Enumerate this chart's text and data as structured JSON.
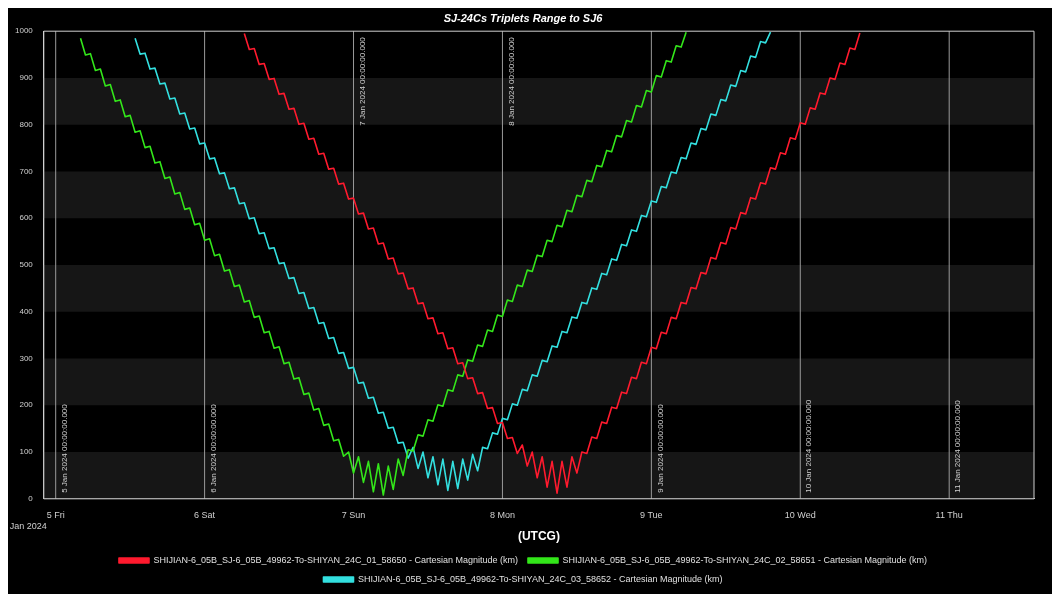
{
  "chart_data": {
    "type": "line",
    "title": "SJ-24Cs Triplets Range to SJ6",
    "xlabel": "(UTCG)",
    "legend": "bottom",
    "xlim": [
      "2024-01-04T22:05",
      "2024-01-11T13:40"
    ],
    "xticks": [
      {
        "value": "2024-01-05",
        "label": "5 Fri"
      },
      {
        "value": "2024-01-06",
        "label": "6 Sat"
      },
      {
        "value": "2024-01-07",
        "label": "7 Sun"
      },
      {
        "value": "2024-01-08",
        "label": "8 Mon"
      },
      {
        "value": "2024-01-09",
        "label": "9 Tue"
      },
      {
        "value": "2024-01-10",
        "label": "10 Wed"
      },
      {
        "value": "2024-01-11",
        "label": "11 Thu"
      }
    ],
    "ylim": [
      0,
      1000
    ],
    "yticks": [
      0,
      100,
      200,
      300,
      400,
      500,
      600,
      700,
      800,
      900,
      1000
    ],
    "annotations": [
      "Jan 2024"
    ],
    "bands": [
      {
        "axis": "y",
        "from": 0,
        "to": 100,
        "color": "#161616"
      },
      {
        "axis": "y",
        "from": 200,
        "to": 300,
        "color": "#161616"
      },
      {
        "axis": "y",
        "from": 400,
        "to": 500,
        "color": "#161616"
      },
      {
        "axis": "y",
        "from": 600,
        "to": 700,
        "color": "#161616"
      },
      {
        "axis": "y",
        "from": 800,
        "to": 900,
        "color": "#161616"
      }
    ],
    "ref_lines": [
      {
        "axis": "x",
        "value": "2024-01-05",
        "label": "5 Jan 2024 00:00:00.000"
      },
      {
        "axis": "x",
        "value": "2024-01-06",
        "label": "6 Jan 2024 00:00:00.000"
      },
      {
        "axis": "x",
        "value": "2024-01-07",
        "label": "7 Jan 2024 00:00:00.000"
      },
      {
        "axis": "x",
        "value": "2024-01-08",
        "label": "8 Jan 2024 00:00:00.000"
      },
      {
        "axis": "x",
        "value": "2024-01-09",
        "label": "9 Jan 2024 00:00:00.000"
      },
      {
        "axis": "x",
        "value": "2024-01-10",
        "label": "10 Jan 2024 00:00:00.000"
      },
      {
        "axis": "x",
        "value": "2024-01-11",
        "label": "11 Jan 2024 00:00:00.000"
      }
    ],
    "series": [
      {
        "name": "SHIJIAN-6_05B_SJ-6_05B_49962-To-SHIYAN_24C_01_58650 - Cartesian Magnitude (km)",
        "color": "#ff1a2e",
        "x": [
          "2024-01-06T06:24",
          "2024-01-06T07:12",
          "2024-01-06T08:00",
          "2024-01-06T08:48",
          "2024-01-06T09:36",
          "2024-01-06T10:24",
          "2024-01-06T11:12",
          "2024-01-06T12:00",
          "2024-01-06T12:48",
          "2024-01-06T13:36",
          "2024-01-06T14:24",
          "2024-01-06T15:12",
          "2024-01-06T16:00",
          "2024-01-06T16:48",
          "2024-01-06T17:36",
          "2024-01-06T18:24",
          "2024-01-06T19:12",
          "2024-01-06T20:00",
          "2024-01-06T20:48",
          "2024-01-06T21:36",
          "2024-01-06T22:24",
          "2024-01-06T23:12",
          "2024-01-07T00:00",
          "2024-01-07T00:48",
          "2024-01-07T01:36",
          "2024-01-07T02:24",
          "2024-01-07T03:12",
          "2024-01-07T04:00",
          "2024-01-07T04:48",
          "2024-01-07T05:36",
          "2024-01-07T06:24",
          "2024-01-07T07:12",
          "2024-01-07T08:00",
          "2024-01-07T08:48",
          "2024-01-07T09:36",
          "2024-01-07T10:24",
          "2024-01-07T11:12",
          "2024-01-07T12:00",
          "2024-01-07T12:48",
          "2024-01-07T13:36",
          "2024-01-07T14:24",
          "2024-01-07T15:12",
          "2024-01-07T16:00",
          "2024-01-07T16:48",
          "2024-01-07T17:36",
          "2024-01-07T18:24",
          "2024-01-07T19:12",
          "2024-01-07T20:00",
          "2024-01-07T20:48",
          "2024-01-07T21:36",
          "2024-01-07T22:24",
          "2024-01-07T23:12",
          "2024-01-08T00:00",
          "2024-01-08T00:48",
          "2024-01-08T01:36",
          "2024-01-08T02:24",
          "2024-01-08T03:12",
          "2024-01-08T04:00",
          "2024-01-08T04:48",
          "2024-01-08T05:36",
          "2024-01-08T06:24",
          "2024-01-08T07:12",
          "2024-01-08T08:00",
          "2024-01-08T08:48",
          "2024-01-08T09:36",
          "2024-01-08T10:24",
          "2024-01-08T11:12",
          "2024-01-08T12:00",
          "2024-01-08T12:48",
          "2024-01-08T13:36",
          "2024-01-08T14:24",
          "2024-01-08T15:12",
          "2024-01-08T16:00",
          "2024-01-08T16:48",
          "2024-01-08T17:36",
          "2024-01-08T18:24",
          "2024-01-08T19:12",
          "2024-01-08T20:00",
          "2024-01-08T20:48",
          "2024-01-08T21:36",
          "2024-01-08T22:24",
          "2024-01-08T23:12",
          "2024-01-09T00:00",
          "2024-01-09T00:48",
          "2024-01-09T01:36",
          "2024-01-09T02:24",
          "2024-01-09T03:12",
          "2024-01-09T04:00",
          "2024-01-09T04:48",
          "2024-01-09T05:36",
          "2024-01-09T06:24",
          "2024-01-09T07:12",
          "2024-01-09T08:00",
          "2024-01-09T08:48",
          "2024-01-09T09:36",
          "2024-01-09T10:24",
          "2024-01-09T11:12",
          "2024-01-09T12:00",
          "2024-01-09T12:48",
          "2024-01-09T13:36",
          "2024-01-09T14:24",
          "2024-01-09T15:12",
          "2024-01-09T16:00",
          "2024-01-09T16:48",
          "2024-01-09T17:36",
          "2024-01-09T18:24",
          "2024-01-09T19:12",
          "2024-01-09T20:00",
          "2024-01-09T20:48",
          "2024-01-09T21:36",
          "2024-01-09T22:24",
          "2024-01-09T23:12",
          "2024-01-10T00:00",
          "2024-01-10T00:48",
          "2024-01-10T01:36",
          "2024-01-10T02:24",
          "2024-01-10T03:12",
          "2024-01-10T04:00",
          "2024-01-10T04:48",
          "2024-01-10T05:36",
          "2024-01-10T06:24",
          "2024-01-10T07:12",
          "2024-01-10T08:00",
          "2024-01-10T08:48",
          "2024-01-10T09:36"
        ],
        "values": [
          995,
          961,
          963,
          929,
          931,
          897,
          899,
          865,
          867,
          833,
          835,
          801,
          803,
          769,
          771,
          737,
          739,
          705,
          707,
          673,
          675,
          641,
          643,
          609,
          611,
          577,
          579,
          545,
          547,
          513,
          515,
          481,
          483,
          449,
          451,
          417,
          419,
          385,
          387,
          353,
          355,
          321,
          323,
          289,
          291,
          257,
          259,
          225,
          227,
          193,
          195,
          161,
          163,
          129,
          131,
          97,
          115,
          70,
          100,
          45,
          90,
          25,
          80,
          12,
          80,
          25,
          90,
          55,
          100,
          97,
          132,
          129,
          164,
          161,
          196,
          193,
          228,
          225,
          260,
          257,
          292,
          289,
          324,
          321,
          356,
          353,
          388,
          385,
          420,
          417,
          452,
          449,
          484,
          481,
          516,
          513,
          548,
          545,
          580,
          577,
          612,
          609,
          644,
          641,
          676,
          673,
          708,
          705,
          740,
          737,
          772,
          769,
          804,
          801,
          836,
          833,
          868,
          865,
          900,
          897,
          932,
          929,
          964,
          961,
          996
        ]
      },
      {
        "name": "SHIJIAN-6_05B_SJ-6_05B_49962-To-SHIYAN_24C_02_58651 - Cartesian Magnitude (km)",
        "color": "#33e61a",
        "x": [
          "2024-01-05T04:00",
          "2024-01-05T04:48",
          "2024-01-05T05:36",
          "2024-01-05T06:24",
          "2024-01-05T07:12",
          "2024-01-05T08:00",
          "2024-01-05T08:48",
          "2024-01-05T09:36",
          "2024-01-05T10:24",
          "2024-01-05T11:12",
          "2024-01-05T12:00",
          "2024-01-05T12:48",
          "2024-01-05T13:36",
          "2024-01-05T14:24",
          "2024-01-05T15:12",
          "2024-01-05T16:00",
          "2024-01-05T16:48",
          "2024-01-05T17:36",
          "2024-01-05T18:24",
          "2024-01-05T19:12",
          "2024-01-05T20:00",
          "2024-01-05T20:48",
          "2024-01-05T21:36",
          "2024-01-05T22:24",
          "2024-01-05T23:12",
          "2024-01-06T00:00",
          "2024-01-06T00:48",
          "2024-01-06T01:36",
          "2024-01-06T02:24",
          "2024-01-06T03:12",
          "2024-01-06T04:00",
          "2024-01-06T04:48",
          "2024-01-06T05:36",
          "2024-01-06T06:24",
          "2024-01-06T07:12",
          "2024-01-06T08:00",
          "2024-01-06T08:48",
          "2024-01-06T09:36",
          "2024-01-06T10:24",
          "2024-01-06T11:12",
          "2024-01-06T12:00",
          "2024-01-06T12:48",
          "2024-01-06T13:36",
          "2024-01-06T14:24",
          "2024-01-06T15:12",
          "2024-01-06T16:00",
          "2024-01-06T16:48",
          "2024-01-06T17:36",
          "2024-01-06T18:24",
          "2024-01-06T19:12",
          "2024-01-06T20:00",
          "2024-01-06T20:48",
          "2024-01-06T21:36",
          "2024-01-06T22:24",
          "2024-01-06T23:12",
          "2024-01-07T00:00",
          "2024-01-07T00:48",
          "2024-01-07T01:36",
          "2024-01-07T02:24",
          "2024-01-07T03:12",
          "2024-01-07T04:00",
          "2024-01-07T04:48",
          "2024-01-07T05:36",
          "2024-01-07T06:24",
          "2024-01-07T07:12",
          "2024-01-07T08:00",
          "2024-01-07T08:48",
          "2024-01-07T09:36",
          "2024-01-07T10:24",
          "2024-01-07T11:12",
          "2024-01-07T12:00",
          "2024-01-07T12:48",
          "2024-01-07T13:36",
          "2024-01-07T14:24",
          "2024-01-07T15:12",
          "2024-01-07T16:00",
          "2024-01-07T16:48",
          "2024-01-07T17:36",
          "2024-01-07T18:24",
          "2024-01-07T19:12",
          "2024-01-07T20:00",
          "2024-01-07T20:48",
          "2024-01-07T21:36",
          "2024-01-07T22:24",
          "2024-01-07T23:12",
          "2024-01-08T00:00",
          "2024-01-08T00:48",
          "2024-01-08T01:36",
          "2024-01-08T02:24",
          "2024-01-08T03:12",
          "2024-01-08T04:00",
          "2024-01-08T04:48",
          "2024-01-08T05:36",
          "2024-01-08T06:24",
          "2024-01-08T07:12",
          "2024-01-08T08:00",
          "2024-01-08T08:48",
          "2024-01-08T09:36",
          "2024-01-08T10:24",
          "2024-01-08T11:12",
          "2024-01-08T12:00",
          "2024-01-08T12:48",
          "2024-01-08T13:36",
          "2024-01-08T14:24",
          "2024-01-08T15:12",
          "2024-01-08T16:00",
          "2024-01-08T16:48",
          "2024-01-08T17:36",
          "2024-01-08T18:24",
          "2024-01-08T19:12",
          "2024-01-08T20:00",
          "2024-01-08T20:48",
          "2024-01-08T21:36",
          "2024-01-08T22:24",
          "2024-01-08T23:12",
          "2024-01-09T00:00",
          "2024-01-09T00:48",
          "2024-01-09T01:36",
          "2024-01-09T02:24",
          "2024-01-09T03:12",
          "2024-01-09T04:00",
          "2024-01-09T04:48",
          "2024-01-09T05:36"
        ],
        "values": [
          985,
          949,
          952,
          916,
          919,
          883,
          886,
          850,
          853,
          817,
          820,
          784,
          787,
          751,
          754,
          718,
          721,
          685,
          688,
          652,
          655,
          619,
          622,
          586,
          589,
          553,
          556,
          520,
          523,
          487,
          490,
          454,
          457,
          421,
          424,
          388,
          391,
          355,
          358,
          322,
          325,
          289,
          292,
          256,
          259,
          223,
          226,
          190,
          193,
          157,
          160,
          124,
          127,
          91,
          100,
          55,
          90,
          35,
          80,
          15,
          75,
          8,
          70,
          20,
          85,
          50,
          105,
          102,
          137,
          134,
          169,
          166,
          201,
          198,
          233,
          230,
          265,
          262,
          297,
          294,
          329,
          326,
          361,
          358,
          393,
          390,
          425,
          422,
          457,
          454,
          489,
          486,
          521,
          518,
          553,
          550,
          585,
          582,
          617,
          614,
          649,
          646,
          681,
          678,
          713,
          710,
          745,
          742,
          777,
          774,
          809,
          806,
          841,
          838,
          873,
          870,
          905,
          902,
          937,
          934,
          969,
          966,
          998
        ]
      },
      {
        "name": "SHIJIAN-6_05B_SJ-6_05B_49962-To-SHIYAN_24C_03_58652 - Cartesian Magnitude (km)",
        "color": "#33e0e0",
        "x": [
          "2024-01-05T12:48",
          "2024-01-05T13:36",
          "2024-01-05T14:24",
          "2024-01-05T15:12",
          "2024-01-05T16:00",
          "2024-01-05T16:48",
          "2024-01-05T17:36",
          "2024-01-05T18:24",
          "2024-01-05T19:12",
          "2024-01-05T20:00",
          "2024-01-05T20:48",
          "2024-01-05T21:36",
          "2024-01-05T22:24",
          "2024-01-05T23:12",
          "2024-01-06T00:00",
          "2024-01-06T00:48",
          "2024-01-06T01:36",
          "2024-01-06T02:24",
          "2024-01-06T03:12",
          "2024-01-06T04:00",
          "2024-01-06T04:48",
          "2024-01-06T05:36",
          "2024-01-06T06:24",
          "2024-01-06T07:12",
          "2024-01-06T08:00",
          "2024-01-06T08:48",
          "2024-01-06T09:36",
          "2024-01-06T10:24",
          "2024-01-06T11:12",
          "2024-01-06T12:00",
          "2024-01-06T12:48",
          "2024-01-06T13:36",
          "2024-01-06T14:24",
          "2024-01-06T15:12",
          "2024-01-06T16:00",
          "2024-01-06T16:48",
          "2024-01-06T17:36",
          "2024-01-06T18:24",
          "2024-01-06T19:12",
          "2024-01-06T20:00",
          "2024-01-06T20:48",
          "2024-01-06T21:36",
          "2024-01-06T22:24",
          "2024-01-06T23:12",
          "2024-01-07T00:00",
          "2024-01-07T00:48",
          "2024-01-07T01:36",
          "2024-01-07T02:24",
          "2024-01-07T03:12",
          "2024-01-07T04:00",
          "2024-01-07T04:48",
          "2024-01-07T05:36",
          "2024-01-07T06:24",
          "2024-01-07T07:12",
          "2024-01-07T08:00",
          "2024-01-07T08:48",
          "2024-01-07T09:36",
          "2024-01-07T10:24",
          "2024-01-07T11:12",
          "2024-01-07T12:00",
          "2024-01-07T12:48",
          "2024-01-07T13:36",
          "2024-01-07T14:24",
          "2024-01-07T15:12",
          "2024-01-07T16:00",
          "2024-01-07T16:48",
          "2024-01-07T17:36",
          "2024-01-07T18:24",
          "2024-01-07T19:12",
          "2024-01-07T20:00",
          "2024-01-07T20:48",
          "2024-01-07T21:36",
          "2024-01-07T22:24",
          "2024-01-07T23:12",
          "2024-01-08T00:00",
          "2024-01-08T00:48",
          "2024-01-08T01:36",
          "2024-01-08T02:24",
          "2024-01-08T03:12",
          "2024-01-08T04:00",
          "2024-01-08T04:48",
          "2024-01-08T05:36",
          "2024-01-08T06:24",
          "2024-01-08T07:12",
          "2024-01-08T08:00",
          "2024-01-08T08:48",
          "2024-01-08T09:36",
          "2024-01-08T10:24",
          "2024-01-08T11:12",
          "2024-01-08T12:00",
          "2024-01-08T12:48",
          "2024-01-08T13:36",
          "2024-01-08T14:24",
          "2024-01-08T15:12",
          "2024-01-08T16:00",
          "2024-01-08T16:48",
          "2024-01-08T17:36",
          "2024-01-08T18:24",
          "2024-01-08T19:12",
          "2024-01-08T20:00",
          "2024-01-08T20:48",
          "2024-01-08T21:36",
          "2024-01-08T22:24",
          "2024-01-08T23:12",
          "2024-01-09T00:00",
          "2024-01-09T00:48",
          "2024-01-09T01:36",
          "2024-01-09T02:24",
          "2024-01-09T03:12",
          "2024-01-09T04:00",
          "2024-01-09T04:48",
          "2024-01-09T05:36",
          "2024-01-09T06:24",
          "2024-01-09T07:12",
          "2024-01-09T08:00",
          "2024-01-09T08:48",
          "2024-01-09T09:36",
          "2024-01-09T10:24",
          "2024-01-09T11:12",
          "2024-01-09T12:00",
          "2024-01-09T12:48",
          "2024-01-09T13:36",
          "2024-01-09T14:24",
          "2024-01-09T15:12",
          "2024-01-09T16:00",
          "2024-01-09T16:48",
          "2024-01-09T17:36",
          "2024-01-09T18:24",
          "2024-01-09T19:12"
        ],
        "values": [
          985,
          951,
          953,
          919,
          921,
          887,
          889,
          855,
          857,
          823,
          825,
          791,
          793,
          759,
          761,
          727,
          729,
          695,
          697,
          663,
          665,
          631,
          633,
          599,
          601,
          567,
          569,
          535,
          537,
          503,
          505,
          471,
          473,
          439,
          441,
          407,
          409,
          375,
          377,
          343,
          345,
          311,
          313,
          279,
          281,
          247,
          249,
          215,
          217,
          183,
          185,
          151,
          153,
          119,
          121,
          87,
          110,
          65,
          100,
          45,
          90,
          30,
          85,
          18,
          80,
          22,
          85,
          40,
          95,
          60,
          110,
          107,
          141,
          138,
          172,
          169,
          203,
          200,
          234,
          231,
          265,
          262,
          296,
          293,
          327,
          324,
          358,
          355,
          389,
          386,
          420,
          417,
          451,
          448,
          482,
          479,
          513,
          510,
          544,
          541,
          575,
          572,
          606,
          603,
          637,
          634,
          668,
          665,
          699,
          696,
          730,
          727,
          761,
          758,
          792,
          789,
          823,
          820,
          854,
          851,
          885,
          882,
          916,
          913,
          947,
          944,
          978,
          975,
          998
        ]
      }
    ]
  }
}
